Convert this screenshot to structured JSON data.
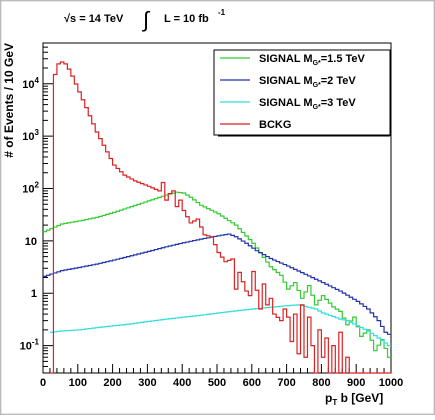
{
  "header": {
    "energy_text": "√s = 14 TeV",
    "lumi_text": "L = 10 fb",
    "lumi_exponent": "-1",
    "integral_symbol": "∫"
  },
  "legend": {
    "items": [
      {
        "label_main": "SIGNAL M",
        "label_sub": "G*",
        "label_rest": "=1.5 TeV",
        "color": "#33cc33"
      },
      {
        "label_main": "SIGNAL M",
        "label_sub": "G*",
        "label_rest": "=2 TeV",
        "color": "#2233aa"
      },
      {
        "label_main": "SIGNAL M",
        "label_sub": "G*",
        "label_rest": "=3 TeV",
        "color": "#33dddd"
      },
      {
        "label_main": "BCKG",
        "label_sub": "",
        "label_rest": "",
        "color": "#dd2222"
      }
    ]
  },
  "chart_data": {
    "type": "line",
    "style": "step histogram",
    "ylabel": "# of Events / 10 GeV",
    "xlabel_parts": {
      "p": "p",
      "sub": "T",
      "rest": " b [GeV]"
    },
    "xlim": [
      0,
      1000
    ],
    "ylim": [
      0.03,
      60000
    ],
    "yscale": "log",
    "x_ticks": [
      0,
      100,
      200,
      300,
      400,
      500,
      600,
      700,
      800,
      900,
      1000
    ],
    "y_ticks": [
      {
        "value": 0.1,
        "base": "10",
        "exp": "-1"
      },
      {
        "value": 1,
        "base": "1",
        "exp": ""
      },
      {
        "value": 10,
        "base": "10",
        "exp": ""
      },
      {
        "value": 100,
        "base": "10",
        "exp": "2"
      },
      {
        "value": 1000,
        "base": "10",
        "exp": "3"
      },
      {
        "value": 10000,
        "base": "10",
        "exp": "4"
      }
    ],
    "bin_width": 10,
    "series": [
      {
        "name": "SIGNAL MG*=1.5 TeV",
        "color": "#33cc33",
        "points": [
          [
            0,
            15
          ],
          [
            50,
            21
          ],
          [
            100,
            24
          ],
          [
            150,
            28
          ],
          [
            200,
            35
          ],
          [
            250,
            45
          ],
          [
            300,
            58
          ],
          [
            350,
            75
          ],
          [
            380,
            85
          ],
          [
            400,
            82
          ],
          [
            420,
            68
          ],
          [
            450,
            48
          ],
          [
            500,
            33
          ],
          [
            550,
            20
          ],
          [
            600,
            9
          ],
          [
            650,
            3.2
          ],
          [
            680,
            2.2
          ],
          [
            700,
            1.2
          ],
          [
            720,
            1.6
          ],
          [
            740,
            0.8
          ],
          [
            760,
            1.4
          ],
          [
            780,
            0.6
          ],
          [
            800,
            0.9
          ],
          [
            830,
            0.55
          ],
          [
            850,
            0.45
          ],
          [
            870,
            0.25
          ],
          [
            890,
            0.35
          ],
          [
            910,
            0.15
          ],
          [
            930,
            0.2
          ],
          [
            950,
            0.08
          ],
          [
            970,
            0.13
          ],
          [
            990,
            0.06
          ],
          [
            1000,
            0.05
          ]
        ]
      },
      {
        "name": "SIGNAL MG*=2 TeV",
        "color": "#2233aa",
        "points": [
          [
            0,
            2.1
          ],
          [
            50,
            2.7
          ],
          [
            100,
            3.1
          ],
          [
            150,
            3.6
          ],
          [
            200,
            4.3
          ],
          [
            250,
            5.2
          ],
          [
            300,
            6.3
          ],
          [
            350,
            7.7
          ],
          [
            400,
            9.2
          ],
          [
            450,
            10.8
          ],
          [
            500,
            12.5
          ],
          [
            530,
            13.5
          ],
          [
            550,
            12
          ],
          [
            580,
            9
          ],
          [
            610,
            6.5
          ],
          [
            650,
            4.6
          ],
          [
            700,
            3.3
          ],
          [
            750,
            2.3
          ],
          [
            800,
            1.6
          ],
          [
            850,
            1.1
          ],
          [
            900,
            0.7
          ],
          [
            930,
            0.5
          ],
          [
            960,
            0.3
          ],
          [
            980,
            0.18
          ],
          [
            1000,
            0.15
          ]
        ]
      },
      {
        "name": "SIGNAL MG*=3 TeV",
        "color": "#33dddd",
        "points": [
          [
            20,
            0.18
          ],
          [
            50,
            0.19
          ],
          [
            100,
            0.2
          ],
          [
            150,
            0.22
          ],
          [
            200,
            0.24
          ],
          [
            250,
            0.26
          ],
          [
            300,
            0.29
          ],
          [
            350,
            0.32
          ],
          [
            400,
            0.35
          ],
          [
            450,
            0.38
          ],
          [
            500,
            0.42
          ],
          [
            550,
            0.46
          ],
          [
            600,
            0.5
          ],
          [
            650,
            0.54
          ],
          [
            700,
            0.58
          ],
          [
            730,
            0.6
          ],
          [
            750,
            0.56
          ],
          [
            780,
            0.5
          ],
          [
            800,
            0.42
          ],
          [
            830,
            0.36
          ],
          [
            850,
            0.32
          ],
          [
            870,
            0.3
          ],
          [
            900,
            0.24
          ],
          [
            930,
            0.19
          ],
          [
            960,
            0.14
          ],
          [
            990,
            0.1
          ],
          [
            1000,
            0.09
          ]
        ]
      },
      {
        "name": "BCKG",
        "color": "#dd2222",
        "points": [
          [
            20,
            0.03
          ],
          [
            30,
            15000
          ],
          [
            40,
            24000
          ],
          [
            50,
            26000
          ],
          [
            60,
            24000
          ],
          [
            70,
            19000
          ],
          [
            80,
            14000
          ],
          [
            100,
            7000
          ],
          [
            120,
            3500
          ],
          [
            150,
            1200
          ],
          [
            180,
            500
          ],
          [
            200,
            280
          ],
          [
            230,
            180
          ],
          [
            260,
            140
          ],
          [
            300,
            110
          ],
          [
            330,
            90
          ],
          [
            340,
            130
          ],
          [
            350,
            60
          ],
          [
            360,
            80
          ],
          [
            370,
            90
          ],
          [
            380,
            45
          ],
          [
            390,
            60
          ],
          [
            400,
            38
          ],
          [
            420,
            22
          ],
          [
            440,
            26
          ],
          [
            460,
            13
          ],
          [
            480,
            12
          ],
          [
            500,
            6
          ],
          [
            520,
            4
          ],
          [
            540,
            4.5
          ],
          [
            550,
            1.2
          ],
          [
            560,
            2.5
          ],
          [
            580,
            1.1
          ],
          [
            590,
            0.9
          ],
          [
            600,
            2.6
          ],
          [
            620,
            0.5
          ],
          [
            630,
            1.5
          ],
          [
            640,
            0.6
          ],
          [
            650,
            0.8
          ],
          [
            660,
            0.4
          ],
          [
            680,
            0.3
          ],
          [
            690,
            0.5
          ],
          [
            700,
            0.35
          ],
          [
            710,
            0.12
          ],
          [
            720,
            0.4
          ],
          [
            730,
            0.07
          ],
          [
            740,
            0.6
          ],
          [
            750,
            0.06
          ],
          [
            760,
            0.35
          ],
          [
            770,
            0.1
          ],
          [
            780,
            0.03
          ],
          [
            790,
            0.2
          ],
          [
            800,
            0.06
          ],
          [
            810,
            0.14
          ],
          [
            820,
            0.03
          ],
          [
            830,
            0.1
          ],
          [
            840,
            0.03
          ],
          [
            850,
            0.18
          ],
          [
            860,
            0.03
          ],
          [
            870,
            0.06
          ],
          [
            880,
            0.03
          ],
          [
            1000,
            0.03
          ]
        ]
      }
    ]
  }
}
